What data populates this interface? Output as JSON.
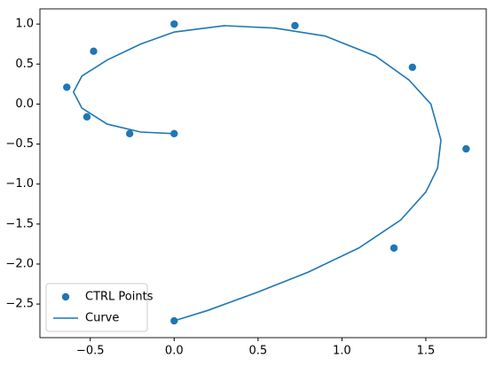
{
  "chart_data": {
    "type": "scatter",
    "xlim": [
      -0.8,
      1.86
    ],
    "ylim": [
      -2.92,
      1.19
    ],
    "xticks": [
      {
        "value": -0.5,
        "label": "−0.5"
      },
      {
        "value": 0,
        "label": "0.0"
      },
      {
        "value": 0.5,
        "label": "0.5"
      },
      {
        "value": 1,
        "label": "1.0"
      },
      {
        "value": 1.5,
        "label": "1.5"
      }
    ],
    "yticks": [
      {
        "value": 1,
        "label": "1.0"
      },
      {
        "value": 0.5,
        "label": "0.5"
      },
      {
        "value": 0,
        "label": "0.0"
      },
      {
        "value": -0.5,
        "label": "−0.5"
      },
      {
        "value": -1,
        "label": "−1.0"
      },
      {
        "value": -1.5,
        "label": "−1.5"
      },
      {
        "value": -2,
        "label": "−2.0"
      },
      {
        "value": -2.5,
        "label": "−2.5"
      }
    ],
    "legend": "lower left",
    "series": [
      {
        "name": "CTRL Points",
        "type": "scatter",
        "color": "#1f77b4",
        "x": [
          0,
          -0.265,
          -0.52,
          -0.64,
          -0.48,
          0,
          0.72,
          1.42,
          1.74,
          1.31,
          0
        ],
        "values": [
          -0.37,
          -0.37,
          -0.16,
          0.21,
          0.66,
          1.0,
          0.98,
          0.46,
          -0.56,
          -1.8,
          -2.71
        ]
      },
      {
        "name": "Curve",
        "type": "line",
        "color": "#1f77b4",
        "x": [
          0,
          -0.2,
          -0.4,
          -0.55,
          -0.6,
          -0.55,
          -0.4,
          -0.2,
          0,
          0.3,
          0.6,
          0.9,
          1.2,
          1.4,
          1.53,
          1.59,
          1.57,
          1.5,
          1.35,
          1.1,
          0.8,
          0.5,
          0.2,
          0
        ],
        "values": [
          -0.37,
          -0.35,
          -0.25,
          -0.05,
          0.15,
          0.35,
          0.55,
          0.75,
          0.9,
          0.98,
          0.95,
          0.85,
          0.6,
          0.3,
          0,
          -0.45,
          -0.8,
          -1.1,
          -1.45,
          -1.8,
          -2.1,
          -2.35,
          -2.58,
          -2.71
        ]
      }
    ]
  }
}
